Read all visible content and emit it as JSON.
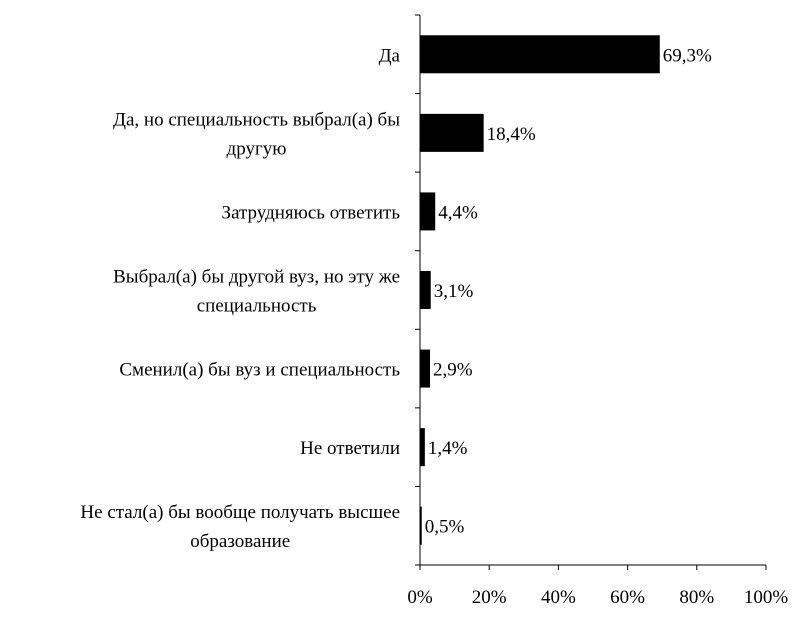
{
  "chart_data": {
    "type": "bar",
    "orientation": "horizontal",
    "categories": [
      [
        "Да"
      ],
      [
        "Да, но специальность выбрал(а) бы",
        "другую"
      ],
      [
        "Затрудняюсь ответить"
      ],
      [
        "Выбрал(а) бы другой вуз, но эту же",
        "специальность"
      ],
      [
        "Сменил(а) бы вуз и специальность"
      ],
      [
        "Не ответили"
      ],
      [
        "Не стал(а) бы вообще получать высшее",
        "образование"
      ]
    ],
    "values": [
      69.3,
      18.4,
      4.4,
      3.1,
      2.9,
      1.4,
      0.5
    ],
    "value_labels": [
      "69,3%",
      "18,4%",
      "4,4%",
      "3,1%",
      "2,9%",
      "1,4%",
      "0,5%"
    ],
    "x_ticks": [
      0,
      20,
      40,
      60,
      80,
      100
    ],
    "x_tick_labels": [
      "0%",
      "20%",
      "40%",
      "60%",
      "80%",
      "100%"
    ],
    "xlim": [
      0,
      100
    ],
    "bar_color": "#000000",
    "axis_color": "#000000",
    "grid": false,
    "legend": "none"
  }
}
